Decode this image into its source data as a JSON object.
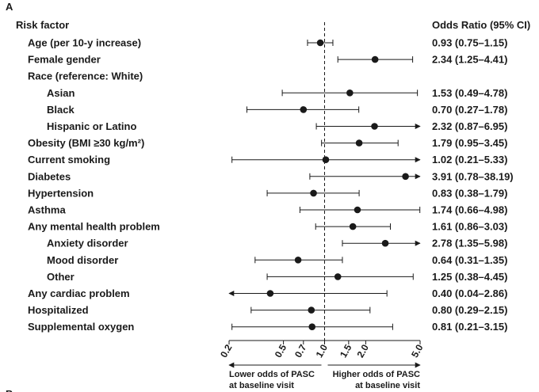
{
  "panel_label": "A",
  "next_panel_label": "B",
  "chart_data": {
    "type": "forest",
    "header_left": "Risk factor",
    "header_right": "Odds Ratio (95% CI)",
    "x_scale": "log",
    "xlim": [
      0.2,
      5.0
    ],
    "reference_line": 1.0,
    "x_ticks": [
      "0.2",
      "0.5",
      "0.7",
      "1.0",
      "1.5",
      "2.0",
      "5.0"
    ],
    "x_tick_values": [
      0.2,
      0.5,
      0.7,
      1.0,
      1.5,
      2.0,
      5.0
    ],
    "annotation_left": [
      "Lower odds of PASC",
      "at baseline visit"
    ],
    "annotation_right": [
      "Higher odds of PASC",
      "at baseline visit"
    ],
    "rows": [
      {
        "label": "Age (per 10-y increase)",
        "indent": 0,
        "or": 0.93,
        "lo": 0.75,
        "hi": 1.15,
        "text": "0.93 (0.75–1.15)"
      },
      {
        "label": "Female gender",
        "indent": 0,
        "or": 2.34,
        "lo": 1.25,
        "hi": 4.41,
        "text": "2.34 (1.25–4.41)"
      },
      {
        "label": "Race (reference: White)",
        "indent": 0,
        "or": null,
        "lo": null,
        "hi": null,
        "text": ""
      },
      {
        "label": "Asian",
        "indent": 1,
        "or": 1.53,
        "lo": 0.49,
        "hi": 4.78,
        "text": "1.53 (0.49–4.78)"
      },
      {
        "label": "Black",
        "indent": 1,
        "or": 0.7,
        "lo": 0.27,
        "hi": 1.78,
        "text": "0.70 (0.27–1.78)"
      },
      {
        "label": "Hispanic or Latino",
        "indent": 1,
        "or": 2.32,
        "lo": 0.87,
        "hi": 6.95,
        "text": "2.32 (0.87–6.95)"
      },
      {
        "label": "Obesity (BMI ≥30 kg/m²)",
        "indent": 0,
        "or": 1.79,
        "lo": 0.95,
        "hi": 3.45,
        "text": "1.79 (0.95–3.45)"
      },
      {
        "label": "Current smoking",
        "indent": 0,
        "or": 1.02,
        "lo": 0.21,
        "hi": 5.33,
        "text": "1.02 (0.21–5.33)"
      },
      {
        "label": "Diabetes",
        "indent": 0,
        "or": 3.91,
        "lo": 0.78,
        "hi": 38.19,
        "text": "3.91 (0.78–38.19)"
      },
      {
        "label": "Hypertension",
        "indent": 0,
        "or": 0.83,
        "lo": 0.38,
        "hi": 1.79,
        "text": "0.83 (0.38–1.79)"
      },
      {
        "label": "Asthma",
        "indent": 0,
        "or": 1.74,
        "lo": 0.66,
        "hi": 4.98,
        "text": "1.74 (0.66–4.98)"
      },
      {
        "label": "Any mental health problem",
        "indent": 0,
        "or": 1.61,
        "lo": 0.86,
        "hi": 3.03,
        "text": "1.61 (0.86–3.03)"
      },
      {
        "label": "Anxiety disorder",
        "indent": 1,
        "or": 2.78,
        "lo": 1.35,
        "hi": 5.98,
        "text": "2.78 (1.35–5.98)"
      },
      {
        "label": "Mood disorder",
        "indent": 1,
        "or": 0.64,
        "lo": 0.31,
        "hi": 1.35,
        "text": "0.64 (0.31–1.35)"
      },
      {
        "label": "Other",
        "indent": 1,
        "or": 1.25,
        "lo": 0.38,
        "hi": 4.45,
        "text": "1.25 (0.38–4.45)"
      },
      {
        "label": "Any cardiac problem",
        "indent": 0,
        "or": 0.4,
        "lo": 0.04,
        "hi": 2.86,
        "text": "0.40 (0.04–2.86)"
      },
      {
        "label": "Hospitalized",
        "indent": 0,
        "or": 0.8,
        "lo": 0.29,
        "hi": 2.15,
        "text": "0.80 (0.29–2.15)"
      },
      {
        "label": "Supplemental oxygen",
        "indent": 0,
        "or": 0.81,
        "lo": 0.21,
        "hi": 3.15,
        "text": "0.81 (0.21–3.15)"
      }
    ]
  }
}
